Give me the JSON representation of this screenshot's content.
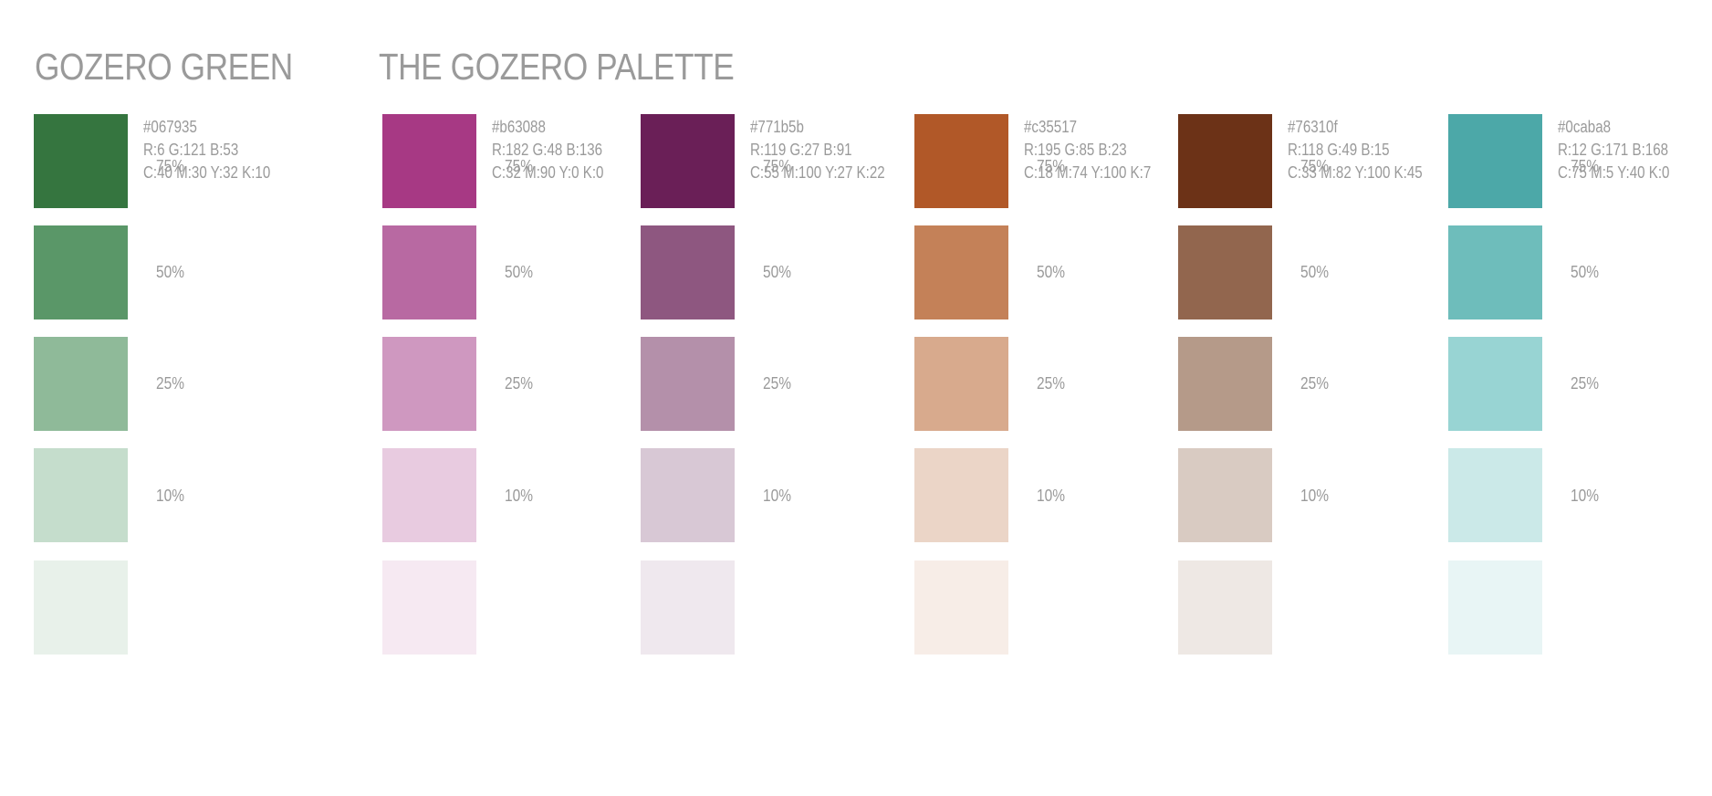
{
  "titles": {
    "green": "GOZERO GREEN",
    "palette": "THE GOZERO PALETTE"
  },
  "tint_labels": [
    "75%",
    "50%",
    "25%",
    "10%"
  ],
  "colors": [
    {
      "hex": "#067935",
      "rgb": "R:6 G:121 B:53",
      "cmyk": "C:40 M:30 Y:32 K:10",
      "swatches": [
        "#35753f",
        "#5a9768",
        "#8fba99",
        "#c5ddcc",
        "#e8f1ea"
      ]
    },
    {
      "hex": "#b63088",
      "rgb": "R:182 G:48 B:136",
      "cmyk": "C:32 M:90 Y:0 K:0",
      "swatches": [
        "#a73984",
        "#b869a2",
        "#cf98c0",
        "#e8cbe0",
        "#f6e9f2"
      ]
    },
    {
      "hex": "#771b5b",
      "rgb": "R:119 G:27 B:91",
      "cmyk": "C:55 M:100 Y:27 K:22",
      "swatches": [
        "#6a1f57",
        "#8e5780",
        "#b490aa",
        "#d8c8d5",
        "#efe8ee"
      ]
    },
    {
      "hex": "#c35517",
      "rgb": "R:195 G:85 B:23",
      "cmyk": "C:18 M:74 Y:100 K:7",
      "swatches": [
        "#b15828",
        "#c48158",
        "#d8aa8d",
        "#ebd5c7",
        "#f7ede7"
      ]
    },
    {
      "hex": "#76310f",
      "rgb": "R:118 G:49 B:15",
      "cmyk": "C:33 M:82 Y:100 K:45",
      "swatches": [
        "#6c3217",
        "#92664e",
        "#b59a89",
        "#d9cbc2",
        "#eee8e4"
      ]
    },
    {
      "hex": "#0caba8",
      "rgb": "R:12 G:171 B:168",
      "cmyk": "C:75 M:5 Y:40 K:0",
      "swatches": [
        "#4ca8a8",
        "#6ebdbb",
        "#98d4d3",
        "#cbe9e8",
        "#e8f5f5"
      ]
    }
  ]
}
